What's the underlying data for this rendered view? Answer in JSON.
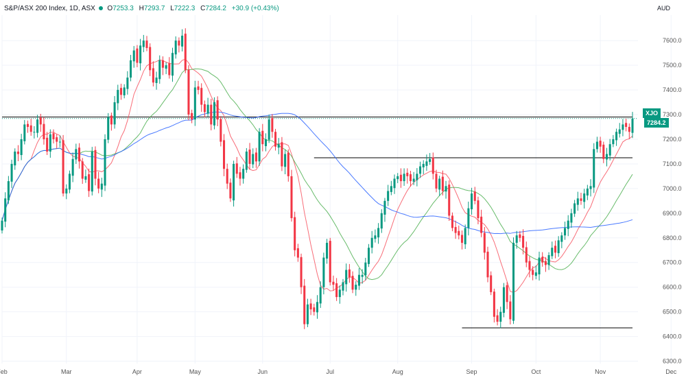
{
  "header": {
    "symbol": "S&P/ASX 200 Index, 1D, ASX",
    "open_label": "O",
    "open": "7253.3",
    "high_label": "H",
    "high": "7293.7",
    "low_label": "L",
    "low": "7222.3",
    "close_label": "C",
    "close": "7284.2",
    "change": "+30.9 (+0.43%)"
  },
  "currency": "AUD",
  "price_tag": {
    "symbol": "XJO",
    "price": "7284.2"
  },
  "colors": {
    "up": "#089981",
    "down": "#f23645",
    "ma_fast": "#f7525f",
    "ma_mid": "#4caf50",
    "ma_slow": "#2962ff",
    "level": "#000000"
  },
  "chart_data": {
    "type": "candlestick",
    "ylim": [
      6250,
      7720
    ],
    "y_ticks": [
      6300,
      6400,
      6500,
      6600,
      6700,
      6800,
      6900,
      7000,
      7100,
      7200,
      7300,
      7400,
      7500,
      7600
    ],
    "x_ticks": [
      {
        "label": "Feb",
        "i": 0
      },
      {
        "label": "Mar",
        "i": 20
      },
      {
        "label": "Apr",
        "i": 42
      },
      {
        "label": "May",
        "i": 60
      },
      {
        "label": "Jun",
        "i": 81
      },
      {
        "label": "Jul",
        "i": 102
      },
      {
        "label": "Aug",
        "i": 123
      },
      {
        "label": "Sep",
        "i": 146
      },
      {
        "label": "Oct",
        "i": 166
      },
      {
        "label": "Nov",
        "i": 186
      },
      {
        "label": "Dec",
        "i": 208
      }
    ],
    "horizontal_levels": [
      7290,
      7125,
      6435
    ],
    "close": [
      6870,
      6960,
      7030,
      7100,
      7150,
      7140,
      7200,
      7260,
      7250,
      7230,
      7230,
      7280,
      7260,
      7200,
      7150,
      7220,
      7200,
      7190,
      7190,
      6980,
      7000,
      7060,
      7120,
      7160,
      7110,
      7040,
      7050,
      6990,
      7150,
      7040,
      7000,
      7020,
      7200,
      7290,
      7260,
      7350,
      7400,
      7380,
      7410,
      7450,
      7520,
      7560,
      7510,
      7580,
      7600,
      7570,
      7480,
      7430,
      7450,
      7520,
      7490,
      7500,
      7460,
      7550,
      7600,
      7580,
      7620,
      7480,
      7300,
      7280,
      7410,
      7400,
      7340,
      7310,
      7340,
      7260,
      7350,
      7280,
      7190,
      7080,
      7020,
      6960,
      7100,
      7060,
      7040,
      7080,
      7150,
      7100,
      7140,
      7110,
      7230,
      7180,
      7200,
      7280,
      7230,
      7170,
      7180,
      7090,
      7140,
      7050,
      6880,
      6750,
      6720,
      6600,
      6450,
      6530,
      6510,
      6500,
      6540,
      6600,
      6720,
      6780,
      6620,
      6610,
      6560,
      6590,
      6620,
      6670,
      6640,
      6590,
      6610,
      6650,
      6650,
      6700,
      6760,
      6800,
      6810,
      6840,
      6900,
      6950,
      6990,
      7010,
      7040,
      7050,
      7030,
      7060,
      7050,
      7030,
      7040,
      7060,
      7090,
      7100,
      7110,
      7120,
      7060,
      7000,
      7040,
      6990,
      7010,
      6890,
      6840,
      6820,
      6810,
      6780,
      6840,
      6920,
      6980,
      6950,
      6880,
      6820,
      6740,
      6640,
      6580,
      6480,
      6460,
      6500,
      6600,
      6540,
      6470,
      6780,
      6810,
      6800,
      6760,
      6700,
      6670,
      6650,
      6660,
      6720,
      6700,
      6690,
      6730,
      6760,
      6740,
      6790,
      6810,
      6840,
      6870,
      6900,
      6940,
      6960,
      6950,
      6980,
      7000,
      7010,
      7160,
      7190,
      7170,
      7120,
      7140,
      7180,
      7200,
      7230,
      7240,
      7260,
      7250,
      7230,
      7284
    ]
  }
}
